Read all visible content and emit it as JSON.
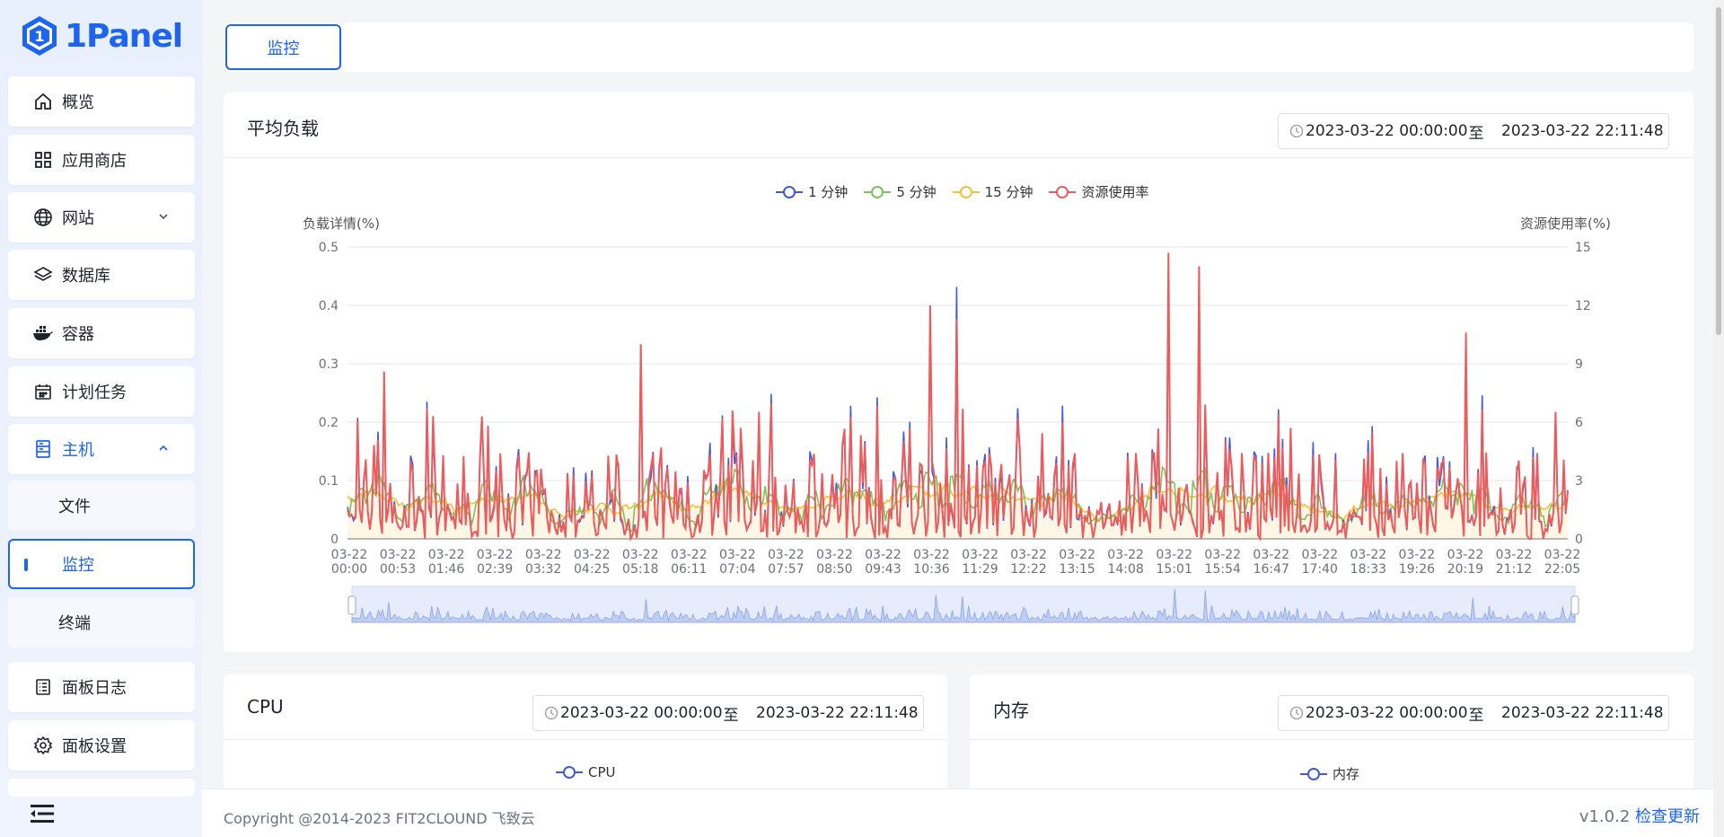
{
  "app": {
    "logo_text": "1Panel",
    "logo_mark": "1"
  },
  "sidebar": {
    "items": [
      {
        "key": "overview",
        "label": "概览",
        "icon": "home-icon"
      },
      {
        "key": "appstore",
        "label": "应用商店",
        "icon": "grid-icon"
      },
      {
        "key": "website",
        "label": "网站",
        "icon": "globe-icon"
      },
      {
        "key": "database",
        "label": "数据库",
        "icon": "layers-icon"
      },
      {
        "key": "container",
        "label": "容器",
        "icon": "docker-icon"
      },
      {
        "key": "cronjob",
        "label": "计划任务",
        "icon": "calendar-icon"
      },
      {
        "key": "host",
        "label": "主机",
        "icon": "server-icon"
      },
      {
        "key": "logs",
        "label": "面板日志",
        "icon": "log-icon"
      },
      {
        "key": "settings",
        "label": "面板设置",
        "icon": "gear-icon"
      }
    ],
    "host_sub": [
      {
        "label": "文件"
      },
      {
        "label": "监控"
      },
      {
        "label": "终端"
      }
    ]
  },
  "tabs": [
    {
      "label": "监控"
    }
  ],
  "load_card": {
    "title": "平均负载",
    "range": {
      "start": "2023-03-22 00:00:00",
      "sep": "至",
      "end": "2023-03-22 22:11:48"
    }
  },
  "cpu_card": {
    "title": "CPU",
    "range": {
      "start": "2023-03-22 00:00:00",
      "sep": "至",
      "end": "2023-03-22 22:11:48"
    },
    "legend": [
      "CPU"
    ]
  },
  "mem_card": {
    "title": "内存",
    "range": {
      "start": "2023-03-22 00:00:00",
      "sep": "至",
      "end": "2023-03-22 22:11:48"
    },
    "legend": [
      "内存"
    ]
  },
  "chart_data": {
    "type": "line",
    "title": "平均负载",
    "ylabel": "负载详情(%)",
    "y2label": "资源使用率(%)",
    "ylim": [
      0,
      0.5
    ],
    "y2lim": [
      0,
      15
    ],
    "y_ticks": [
      "0",
      "0.1",
      "0.2",
      "0.3",
      "0.4",
      "0.5"
    ],
    "y2_ticks": [
      "0",
      "3",
      "6",
      "9",
      "12",
      "15"
    ],
    "x_ticks": [
      [
        "03-22",
        "00:00"
      ],
      [
        "03-22",
        "00:53"
      ],
      [
        "03-22",
        "01:46"
      ],
      [
        "03-22",
        "02:39"
      ],
      [
        "03-22",
        "03:32"
      ],
      [
        "03-22",
        "04:25"
      ],
      [
        "03-22",
        "05:18"
      ],
      [
        "03-22",
        "06:11"
      ],
      [
        "03-22",
        "07:04"
      ],
      [
        "03-22",
        "07:57"
      ],
      [
        "03-22",
        "08:50"
      ],
      [
        "03-22",
        "09:43"
      ],
      [
        "03-22",
        "10:36"
      ],
      [
        "03-22",
        "11:29"
      ],
      [
        "03-22",
        "12:22"
      ],
      [
        "03-22",
        "13:15"
      ],
      [
        "03-22",
        "14:08"
      ],
      [
        "03-22",
        "15:01"
      ],
      [
        "03-22",
        "15:54"
      ],
      [
        "03-22",
        "16:47"
      ],
      [
        "03-22",
        "17:40"
      ],
      [
        "03-22",
        "18:33"
      ],
      [
        "03-22",
        "19:26"
      ],
      [
        "03-22",
        "20:19"
      ],
      [
        "03-22",
        "21:12"
      ],
      [
        "03-22",
        "22:05"
      ]
    ],
    "series": [
      {
        "name": "1 分钟",
        "color": "#3f5bd5",
        "axis": "left"
      },
      {
        "name": "5 分钟",
        "color": "#7cc25a",
        "axis": "left"
      },
      {
        "name": "15 分钟",
        "color": "#f5c035",
        "axis": "left"
      },
      {
        "name": "资源使用率",
        "color": "#ed5c5c",
        "axis": "right"
      }
    ],
    "peaks_right_axis": [
      {
        "time": "00:40",
        "value": 8.6
      },
      {
        "time": "05:20",
        "value": 10.0
      },
      {
        "time": "10:35",
        "value": 12.0
      },
      {
        "time": "11:05",
        "value": 11.3
      },
      {
        "time": "14:55",
        "value": 14.7
      },
      {
        "time": "15:30",
        "value": 14.0
      },
      {
        "time": "20:20",
        "value": 10.6
      }
    ],
    "grid": true,
    "legend_position": "top-center"
  },
  "footer": {
    "copyright": "Copyright @2014-2023 FIT2CLOUND 飞致云",
    "version": "v1.0.2",
    "update_link": "检查更新"
  }
}
